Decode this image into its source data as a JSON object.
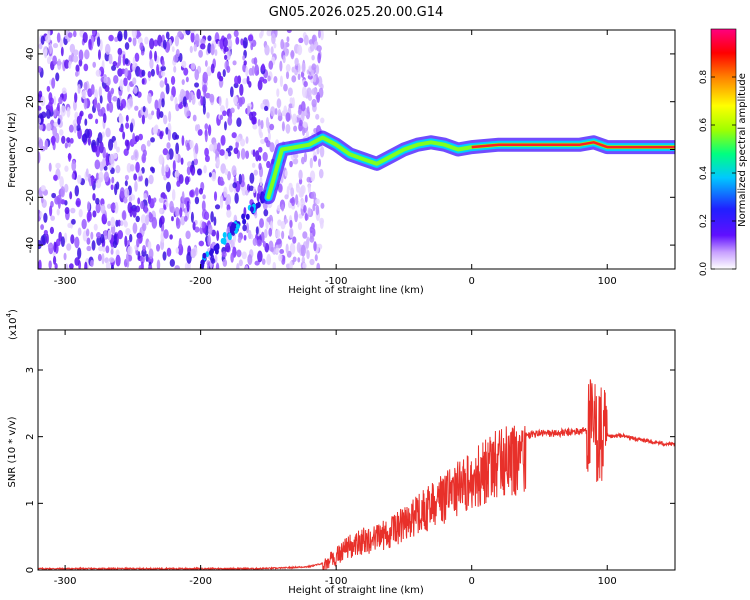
{
  "title": "GN05.2026.025.20.00.G14",
  "chart_data": [
    {
      "type": "heatmap",
      "xlabel": "Height of straight line (km)",
      "ylabel": "Frequency (Hz)",
      "xlim": [
        -320,
        150
      ],
      "ylim": [
        -50,
        50
      ],
      "xticks": [
        -300,
        -200,
        -100,
        0,
        100
      ],
      "yticks": [
        -40,
        -20,
        0,
        20,
        40
      ],
      "colorbar": {
        "label": "Normalized spectral amplitude",
        "range": [
          0,
          1
        ],
        "ticks": [
          "0.0",
          "0.2",
          "0.4",
          "0.6",
          "0.8"
        ],
        "colors": [
          "#ffffff",
          "#c8a0ff",
          "#6010ff",
          "#2020ff",
          "#00c8ff",
          "#00ff80",
          "#a0ff00",
          "#ffff00",
          "#ff8000",
          "#ff0000",
          "#ff0080"
        ]
      },
      "ridge": {
        "x": [
          -150,
          -140,
          -130,
          -120,
          -110,
          -100,
          -90,
          -80,
          -70,
          -60,
          -50,
          -40,
          -30,
          -20,
          -10,
          0,
          20,
          40,
          60,
          80,
          90,
          100,
          120,
          150
        ],
        "y": [
          -20,
          0,
          1,
          2,
          5,
          2,
          -2,
          -4,
          -6,
          -3,
          0,
          2,
          3,
          2,
          0,
          1,
          2,
          2,
          2,
          2,
          3,
          1,
          1,
          1
        ]
      },
      "grid": false
    },
    {
      "type": "line",
      "xlabel": "Height of straight line (km)",
      "ylabel": "SNR (10 * v/v)",
      "yscale_label": "(x10",
      "yscale_exp": "4",
      "xlim": [
        -320,
        150
      ],
      "ylim": [
        0,
        3.6
      ],
      "xticks": [
        -300,
        -200,
        -100,
        0,
        100
      ],
      "yticks": [
        0,
        1,
        2,
        3
      ],
      "series": [
        {
          "color": "#e8302a",
          "x": [
            -320,
            -250,
            -200,
            -160,
            -140,
            -120,
            -110,
            -100,
            -90,
            -80,
            -70,
            -60,
            -50,
            -40,
            -30,
            -20,
            -10,
            0,
            10,
            20,
            30,
            40,
            50,
            60,
            70,
            80,
            85,
            90,
            95,
            97,
            100,
            105,
            110,
            120,
            130,
            140,
            150
          ],
          "y": [
            0.02,
            0.02,
            0.02,
            0.02,
            0.03,
            0.05,
            0.1,
            0.3,
            0.45,
            0.55,
            0.6,
            0.7,
            0.85,
            1.0,
            1.15,
            1.3,
            1.45,
            1.6,
            1.75,
            1.9,
            1.97,
            2.02,
            2.05,
            2.05,
            2.06,
            2.08,
            2.1,
            2.1,
            2.0,
            1.9,
            2.0,
            2.0,
            2.02,
            1.97,
            1.93,
            1.9,
            1.88
          ]
        }
      ],
      "grid": false
    }
  ]
}
